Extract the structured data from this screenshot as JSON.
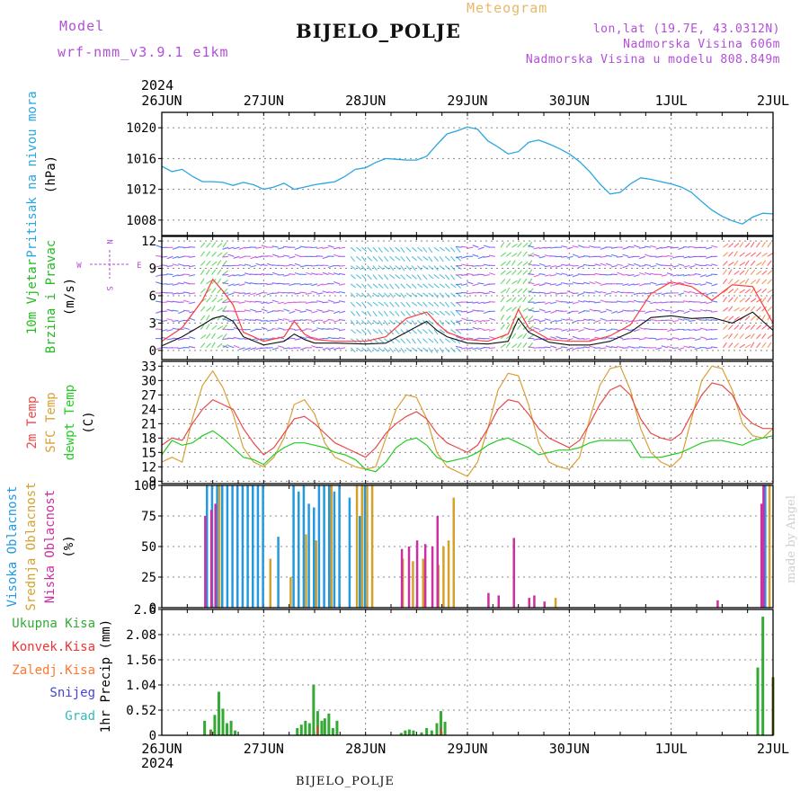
{
  "header": {
    "model_label": "Model",
    "model_name": "wrf-nmm_v3.9.1  e1km",
    "station": "BIJELO_POLJE",
    "meteogram": "Meteogram",
    "lonlat": "lon,lat (19.7E, 43.0312N)",
    "elevation": "Nadmorska Visina 606m",
    "model_elevation": "Nadmorska Visina u modelu 808.849m",
    "year": "2024",
    "footer_station": "BIJELO_POLJE",
    "credit": "made by Angel"
  },
  "colors": {
    "pressure": "#2aa6e0",
    "wind_speed": "#111111",
    "gust": "#ff3b3b",
    "temp2m": "#e84a4a",
    "sfc_temp": "#d9a035",
    "dewpt": "#22cc22",
    "high_cloud": "#2299e0",
    "mid_cloud": "#d4a22a",
    "low_cloud": "#cc2fa0",
    "total_precip": "#33aa33",
    "conv_precip": "#ee3333",
    "frozen_precip": "#ff7733",
    "snow": "#4444dd",
    "hail": "#33bbbb"
  },
  "chart_data": [
    {
      "type": "line",
      "name": "pressure",
      "ylabel": [
        "Pritisak na nivou mora",
        "(hPa)"
      ],
      "x_ticks": [
        "26JUN",
        "27JUN",
        "28JUN",
        "29JUN",
        "30JUN",
        "1JUL",
        "2JUL"
      ],
      "ylim": [
        1006,
        1022
      ],
      "yticks": [
        1008,
        1012,
        1016,
        1020
      ],
      "x": [
        0,
        0.1,
        0.2,
        0.3,
        0.4,
        0.5,
        0.6,
        0.7,
        0.8,
        0.9,
        1.0,
        1.1,
        1.2,
        1.3,
        1.4,
        1.5,
        1.6,
        1.7,
        1.8,
        1.9,
        2.0,
        2.1,
        2.2,
        2.3,
        2.4,
        2.5,
        2.6,
        2.7,
        2.8,
        2.9,
        3.0,
        3.1,
        3.2,
        3.3,
        3.4,
        3.5,
        3.6,
        3.7,
        3.8,
        3.9,
        4.0,
        4.1,
        4.2,
        4.3,
        4.4,
        4.5,
        4.6,
        4.7,
        4.8,
        4.9,
        5.0,
        5.1,
        5.2,
        5.3,
        5.4,
        5.5,
        5.6,
        5.7,
        5.8,
        5.9,
        6.0
      ],
      "values": [
        1015.0,
        1014.3,
        1014.6,
        1013.7,
        1013.0,
        1013.0,
        1012.9,
        1012.5,
        1012.9,
        1012.6,
        1012.0,
        1012.3,
        1012.8,
        1012.0,
        1012.3,
        1012.6,
        1012.8,
        1013.0,
        1013.7,
        1014.6,
        1014.8,
        1015.5,
        1016.0,
        1015.9,
        1015.8,
        1015.8,
        1016.3,
        1017.8,
        1019.2,
        1019.6,
        1020.1,
        1019.8,
        1018.3,
        1017.5,
        1016.6,
        1016.9,
        1018.1,
        1018.4,
        1017.9,
        1017.3,
        1016.6,
        1015.6,
        1014.3,
        1012.7,
        1011.4,
        1011.6,
        1012.7,
        1013.5,
        1013.3,
        1013.0,
        1012.7,
        1012.3,
        1011.6,
        1010.4,
        1009.3,
        1008.5,
        1007.9,
        1007.5,
        1008.4,
        1008.9,
        1008.8
      ]
    },
    {
      "type": "line",
      "name": "wind",
      "ylabel": [
        "10m Vjetar",
        "Brzina i Pravac",
        "(m/s)"
      ],
      "compass": "N",
      "compass_s": "S",
      "compass_w": "W",
      "compass_e": "E",
      "ylim": [
        -1,
        12.5
      ],
      "yticks": [
        0,
        3,
        6,
        9,
        12
      ],
      "x": [
        0,
        0.2,
        0.4,
        0.5,
        0.6,
        0.7,
        0.8,
        1.0,
        1.2,
        1.3,
        1.4,
        1.5,
        1.7,
        2.0,
        2.2,
        2.4,
        2.6,
        2.7,
        2.8,
        3.0,
        3.2,
        3.4,
        3.5,
        3.6,
        3.8,
        4.0,
        4.2,
        4.4,
        4.6,
        4.8,
        5.0,
        5.2,
        5.4,
        5.6,
        5.8,
        6.0
      ],
      "speed": [
        0.5,
        1.5,
        2.8,
        3.5,
        3.8,
        3.2,
        1.5,
        0.6,
        1.0,
        1.8,
        1.2,
        0.8,
        0.8,
        0.7,
        0.8,
        2.0,
        3.2,
        2.2,
        1.5,
        0.8,
        0.7,
        1.0,
        3.5,
        2.0,
        0.9,
        0.6,
        0.6,
        1.0,
        2.0,
        3.6,
        3.8,
        3.5,
        3.6,
        3.0,
        4.2,
        2.2
      ],
      "gust": [
        1.0,
        2.5,
        5.5,
        7.8,
        6.5,
        5.0,
        2.0,
        1.0,
        1.5,
        3.2,
        1.8,
        1.2,
        1.0,
        1.0,
        1.5,
        3.5,
        4.2,
        3.0,
        2.0,
        1.2,
        1.0,
        1.8,
        4.5,
        2.5,
        1.2,
        1.0,
        1.0,
        1.6,
        2.8,
        6.2,
        7.5,
        7.0,
        5.5,
        7.2,
        7.0,
        3.0
      ]
    },
    {
      "type": "line",
      "name": "temperature",
      "ylabel": [
        "2m Temp",
        "SFC Temp",
        "dewpt Temp",
        "(C)"
      ],
      "ylim": [
        8.5,
        34
      ],
      "yticks": [
        9,
        12,
        15,
        18,
        21,
        24,
        27,
        30,
        33
      ],
      "x": [
        0,
        0.1,
        0.2,
        0.3,
        0.4,
        0.5,
        0.6,
        0.7,
        0.8,
        0.9,
        1.0,
        1.1,
        1.2,
        1.3,
        1.4,
        1.5,
        1.6,
        1.7,
        1.8,
        1.9,
        2.0,
        2.1,
        2.2,
        2.3,
        2.4,
        2.5,
        2.6,
        2.7,
        2.8,
        2.9,
        3.0,
        3.1,
        3.2,
        3.3,
        3.4,
        3.5,
        3.6,
        3.7,
        3.8,
        3.9,
        4.0,
        4.1,
        4.2,
        4.3,
        4.4,
        4.5,
        4.6,
        4.7,
        4.8,
        4.9,
        5.0,
        5.1,
        5.2,
        5.3,
        5.4,
        5.5,
        5.6,
        5.7,
        5.8,
        5.9,
        6.0
      ],
      "t2m": [
        16.5,
        18.0,
        17.5,
        21.0,
        24.0,
        26.0,
        25.0,
        24.0,
        20.0,
        17.0,
        14.5,
        16.0,
        19.0,
        22.0,
        22.5,
        21.0,
        19.0,
        17.0,
        16.0,
        15.0,
        14.0,
        16.0,
        19.0,
        21.0,
        22.5,
        23.5,
        22.0,
        19.0,
        17.0,
        16.0,
        15.0,
        16.5,
        20.0,
        24.0,
        26.0,
        25.5,
        23.0,
        20.0,
        18.0,
        17.0,
        16.0,
        17.5,
        21.0,
        25.0,
        28.0,
        29.0,
        27.0,
        22.0,
        19.0,
        18.0,
        17.5,
        19.0,
        23.0,
        27.0,
        29.5,
        29.0,
        27.0,
        23.0,
        21.0,
        20.0,
        20.0
      ],
      "sfc": [
        13.0,
        14.0,
        13.0,
        22.0,
        29.0,
        32.0,
        28.5,
        23.0,
        16.0,
        13.0,
        12.0,
        14.0,
        18.0,
        25.0,
        26.0,
        23.0,
        17.0,
        14.0,
        13.0,
        12.0,
        11.5,
        12.0,
        18.0,
        24.0,
        27.0,
        26.5,
        22.0,
        15.0,
        12.0,
        11.0,
        10.0,
        13.0,
        20.0,
        28.0,
        31.5,
        31.0,
        25.0,
        17.0,
        13.0,
        12.0,
        11.5,
        14.0,
        22.0,
        29.0,
        32.5,
        33.0,
        28.0,
        20.0,
        15.0,
        13.0,
        12.0,
        14.0,
        22.0,
        30.0,
        33.0,
        32.5,
        28.0,
        21.0,
        18.5,
        18.0,
        20.0
      ],
      "dewpt": [
        14.5,
        17.5,
        16.5,
        17.0,
        18.5,
        19.5,
        18.0,
        16.0,
        14.0,
        13.5,
        12.5,
        14.5,
        16.0,
        17.0,
        17.0,
        16.5,
        16.0,
        15.0,
        14.5,
        13.5,
        11.5,
        11.0,
        13.0,
        16.0,
        17.5,
        18.0,
        16.5,
        14.0,
        13.0,
        13.5,
        14.0,
        15.0,
        16.5,
        17.5,
        18.0,
        17.0,
        16.0,
        14.5,
        15.0,
        15.5,
        15.5,
        16.0,
        17.0,
        17.5,
        17.5,
        17.5,
        17.5,
        14.0,
        14.0,
        14.0,
        14.5,
        15.0,
        16.0,
        17.0,
        17.5,
        17.5,
        17.0,
        16.5,
        17.5,
        18.0,
        18.5
      ]
    },
    {
      "type": "bar",
      "name": "clouds",
      "ylabel": [
        "Visoka Oblacnost",
        "Srednja Oblacnost",
        "Niska Oblacnost",
        "(%)"
      ],
      "ylim": [
        0,
        100
      ],
      "yticks": [
        0,
        25,
        50,
        75,
        100
      ],
      "high_x": [
        0.45,
        0.5,
        0.55,
        0.6,
        0.65,
        0.7,
        0.75,
        0.8,
        0.85,
        0.9,
        0.95,
        1.0,
        1.15,
        1.3,
        1.35,
        1.4,
        1.45,
        1.5,
        1.55,
        1.6,
        1.65,
        1.7,
        1.75,
        1.85,
        1.95,
        2.0,
        5.93
      ],
      "high_v": [
        100,
        100,
        100,
        100,
        100,
        100,
        100,
        100,
        100,
        100,
        100,
        100,
        58,
        100,
        95,
        100,
        85,
        82,
        100,
        100,
        100,
        95,
        100,
        90,
        75,
        100,
        100
      ],
      "mid_x": [
        0.55,
        1.05,
        1.25,
        1.4,
        1.5,
        1.65,
        1.9,
        1.95,
        2.0,
        2.05,
        2.35,
        2.45,
        2.55,
        2.7,
        2.75,
        2.8,
        2.85,
        3.85,
        5.95
      ],
      "mid_v": [
        100,
        40,
        25,
        60,
        55,
        100,
        100,
        100,
        100,
        100,
        40,
        38,
        40,
        35,
        50,
        55,
        90,
        8,
        100
      ],
      "low_x": [
        0.42,
        0.48,
        0.52,
        2.35,
        2.42,
        2.5,
        2.58,
        2.65,
        2.7,
        3.2,
        3.3,
        3.45,
        3.6,
        3.65,
        3.75,
        5.45,
        5.88,
        5.9
      ],
      "low_v": [
        75,
        80,
        85,
        48,
        50,
        55,
        52,
        50,
        75,
        12,
        10,
        57,
        8,
        10,
        5,
        6,
        85,
        100
      ]
    },
    {
      "type": "bar",
      "name": "precipitation",
      "ylabel": [
        "1hr Precip (mm)"
      ],
      "legend": [
        "Ukupna Kisa",
        "Konvek.Kisa",
        "Zaledj.Kisa",
        "Snijeg",
        "Grad"
      ],
      "ylim": [
        0,
        2.6
      ],
      "yticks": [
        0,
        0.52,
        1.04,
        1.56,
        2.08,
        2.6
      ],
      "ytick_labels": [
        "0",
        "0.52",
        "1.04",
        "1.56",
        "2.08",
        "2.6"
      ],
      "total_x": [
        0.42,
        0.48,
        0.52,
        0.56,
        0.6,
        0.64,
        0.68,
        0.72,
        1.33,
        1.37,
        1.41,
        1.45,
        1.49,
        1.53,
        1.57,
        1.6,
        1.64,
        1.68,
        1.72,
        2.35,
        2.39,
        2.43,
        2.47,
        2.55,
        2.6,
        2.65,
        2.7,
        2.74,
        2.78,
        5.85,
        5.9,
        6.0
      ],
      "total_v": [
        0.3,
        0.12,
        0.42,
        0.9,
        0.55,
        0.25,
        0.3,
        0.1,
        0.15,
        0.22,
        0.3,
        0.25,
        1.05,
        0.5,
        0.3,
        0.35,
        0.45,
        0.15,
        0.3,
        0.05,
        0.1,
        0.12,
        0.1,
        0.06,
        0.15,
        0.1,
        0.25,
        0.5,
        0.28,
        1.4,
        2.45,
        1.2
      ],
      "conv_x": [
        0.48,
        1.53,
        2.74,
        6.0
      ],
      "conv_v": [
        0.08,
        0.2,
        0.15,
        1.2
      ]
    }
  ]
}
